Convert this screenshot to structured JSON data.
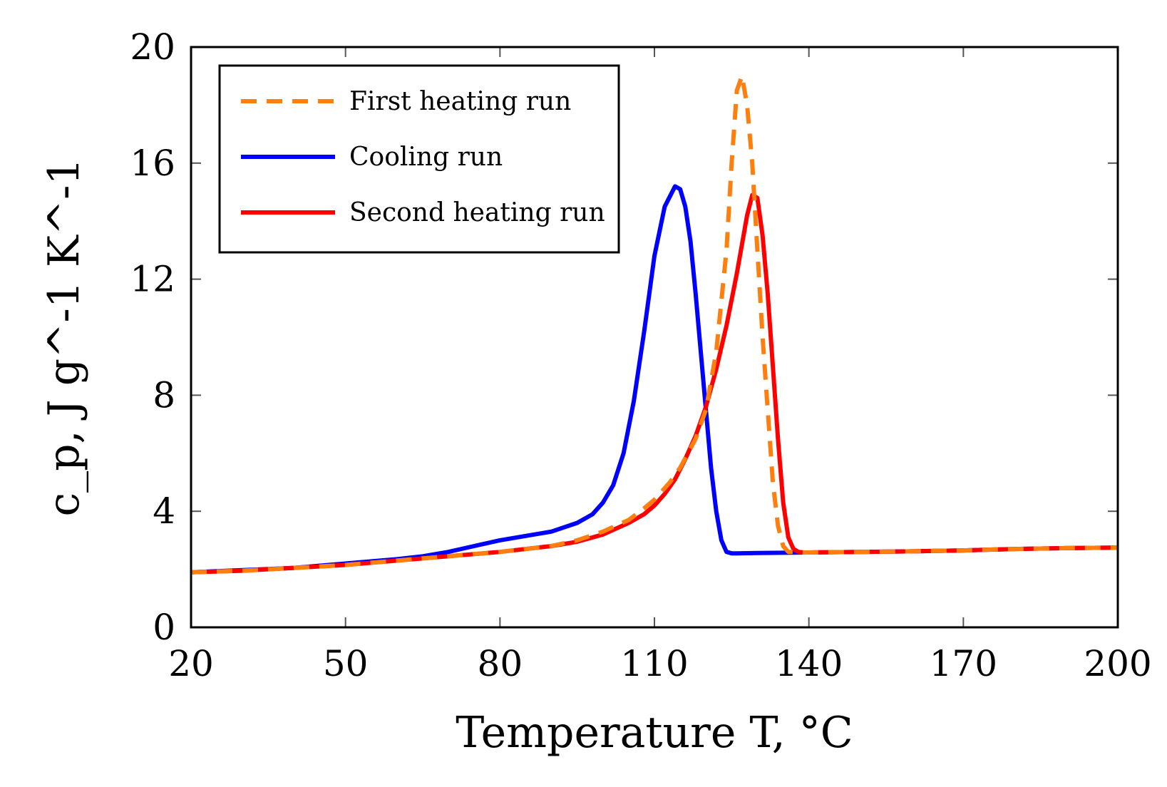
{
  "chart_data": {
    "type": "line",
    "xlabel": "Temperature T, °C",
    "ylabel": "c_p, J g^-1 K^-1",
    "xlim": [
      20,
      200
    ],
    "ylim": [
      0,
      20
    ],
    "x_ticks": [
      "20",
      "50",
      "80",
      "110",
      "140",
      "170",
      "200"
    ],
    "y_ticks": [
      "0",
      "4",
      "8",
      "12",
      "16",
      "20"
    ],
    "grid": false,
    "legend_position": "top-left",
    "series": [
      {
        "name": "First heating run",
        "color": "#ff7f0e",
        "style": "dashed",
        "x": [
          20,
          30,
          40,
          50,
          60,
          70,
          80,
          90,
          95,
          100,
          105,
          108,
          110,
          113,
          115,
          118,
          120,
          122,
          124,
          125,
          126,
          127,
          128,
          129,
          130,
          131,
          132,
          133,
          134,
          135,
          136,
          137,
          138,
          139,
          140,
          150,
          160,
          170,
          180,
          190,
          200
        ],
        "y": [
          1.9,
          1.95,
          2.05,
          2.15,
          2.3,
          2.45,
          2.6,
          2.8,
          3.0,
          3.3,
          3.7,
          4.1,
          4.4,
          5.0,
          5.5,
          6.5,
          7.5,
          9.5,
          13.0,
          16.0,
          18.5,
          19.0,
          18.0,
          16.0,
          13.0,
          10.0,
          7.5,
          5.0,
          3.5,
          2.8,
          2.6,
          2.6,
          2.6,
          2.58,
          2.58,
          2.6,
          2.62,
          2.65,
          2.7,
          2.73,
          2.75
        ]
      },
      {
        "name": "Cooling run",
        "color": "#0000ff",
        "style": "solid",
        "x": [
          20,
          30,
          40,
          50,
          60,
          65,
          70,
          75,
          80,
          85,
          90,
          95,
          98,
          100,
          102,
          104,
          106,
          108,
          110,
          112,
          114,
          115,
          116,
          117,
          118,
          119,
          120,
          121,
          122,
          123,
          124,
          125,
          126,
          130,
          140,
          150,
          160,
          170,
          180,
          190,
          200
        ],
        "y": [
          1.9,
          1.97,
          2.05,
          2.2,
          2.35,
          2.45,
          2.6,
          2.8,
          3.0,
          3.15,
          3.3,
          3.6,
          3.9,
          4.3,
          4.9,
          6.0,
          7.8,
          10.2,
          12.8,
          14.5,
          15.2,
          15.1,
          14.5,
          13.3,
          11.5,
          9.5,
          7.5,
          5.5,
          4.0,
          3.0,
          2.6,
          2.55,
          2.55,
          2.56,
          2.58,
          2.6,
          2.62,
          2.65,
          2.7,
          2.73,
          2.75
        ]
      },
      {
        "name": "Second heating run",
        "color": "#ff0000",
        "style": "solid",
        "x": [
          20,
          30,
          40,
          50,
          60,
          70,
          80,
          90,
          95,
          100,
          105,
          108,
          110,
          112,
          114,
          116,
          118,
          120,
          122,
          124,
          126,
          127,
          128,
          129,
          130,
          131,
          132,
          133,
          134,
          135,
          136,
          137,
          138,
          139,
          140,
          150,
          160,
          170,
          180,
          190,
          200
        ],
        "y": [
          1.9,
          1.95,
          2.05,
          2.15,
          2.3,
          2.45,
          2.6,
          2.8,
          2.95,
          3.2,
          3.6,
          3.9,
          4.2,
          4.6,
          5.1,
          5.8,
          6.6,
          7.6,
          8.9,
          10.4,
          12.2,
          13.2,
          14.2,
          14.9,
          14.8,
          13.5,
          11.5,
          9.0,
          6.5,
          4.3,
          3.1,
          2.7,
          2.6,
          2.58,
          2.58,
          2.6,
          2.62,
          2.65,
          2.7,
          2.73,
          2.75
        ]
      }
    ]
  }
}
